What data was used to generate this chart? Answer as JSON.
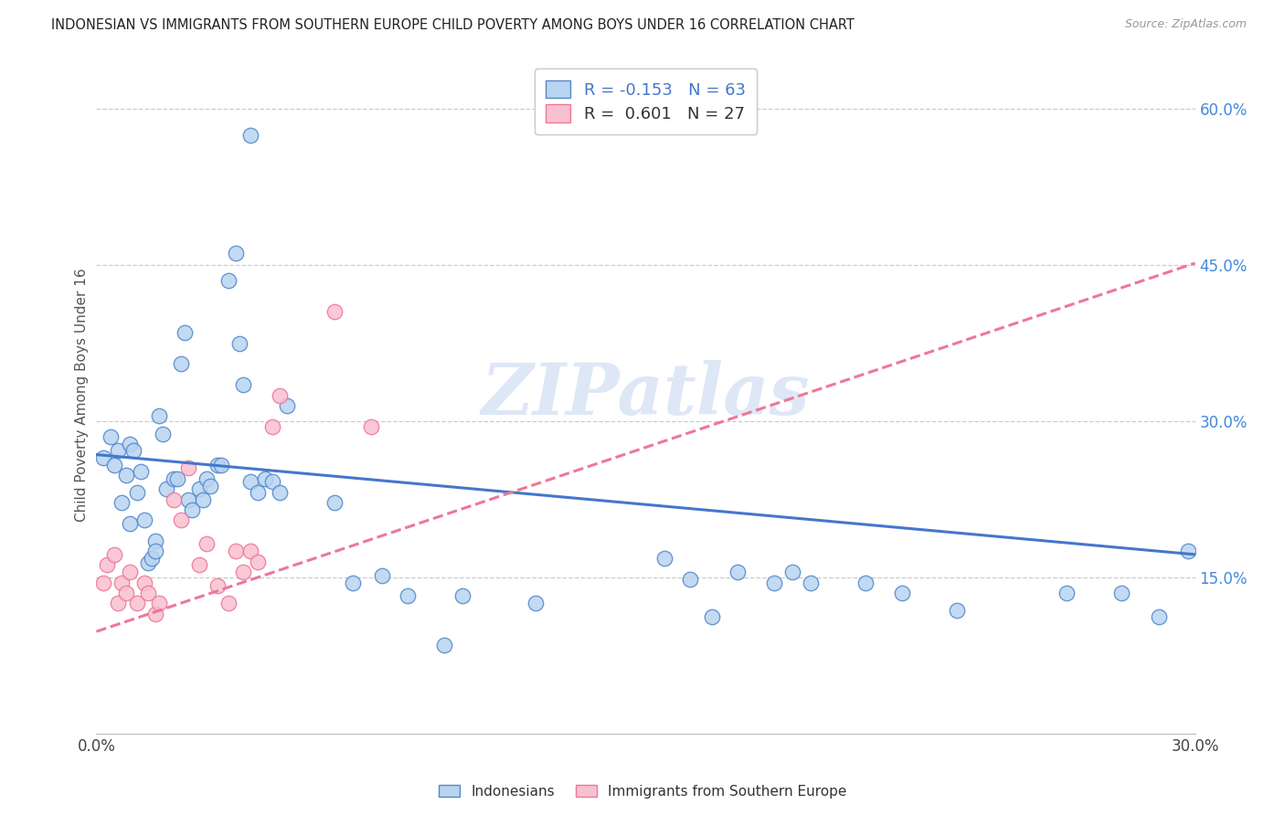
{
  "title": "INDONESIAN VS IMMIGRANTS FROM SOUTHERN EUROPE CHILD POVERTY AMONG BOYS UNDER 16 CORRELATION CHART",
  "source": "Source: ZipAtlas.com",
  "ylabel": "Child Poverty Among Boys Under 16",
  "xlim": [
    0.0,
    0.3
  ],
  "ylim": [
    0.0,
    0.65
  ],
  "xticks": [
    0.0,
    0.05,
    0.1,
    0.15,
    0.2,
    0.25,
    0.3
  ],
  "xtick_labels": [
    "0.0%",
    "",
    "",
    "",
    "",
    "",
    "30.0%"
  ],
  "ytick_labels_right": [
    "15.0%",
    "30.0%",
    "45.0%",
    "60.0%"
  ],
  "ytick_vals_right": [
    0.15,
    0.3,
    0.45,
    0.6
  ],
  "R_blue": -0.153,
  "N_blue": 63,
  "R_pink": 0.601,
  "N_pink": 27,
  "blue_face_color": "#B8D4F0",
  "pink_face_color": "#F8C0D0",
  "blue_edge_color": "#5588CC",
  "pink_edge_color": "#EE7799",
  "blue_line_color": "#4477CC",
  "pink_line_color": "#EE7799",
  "watermark": "ZIPatlas",
  "legend_label_blue": "Indonesians",
  "legend_label_pink": "Immigrants from Southern Europe",
  "blue_points": [
    [
      0.002,
      0.265
    ],
    [
      0.004,
      0.285
    ],
    [
      0.005,
      0.258
    ],
    [
      0.006,
      0.272
    ],
    [
      0.007,
      0.222
    ],
    [
      0.008,
      0.248
    ],
    [
      0.009,
      0.202
    ],
    [
      0.009,
      0.278
    ],
    [
      0.01,
      0.272
    ],
    [
      0.011,
      0.232
    ],
    [
      0.012,
      0.252
    ],
    [
      0.013,
      0.205
    ],
    [
      0.014,
      0.164
    ],
    [
      0.015,
      0.168
    ],
    [
      0.016,
      0.185
    ],
    [
      0.016,
      0.175
    ],
    [
      0.017,
      0.305
    ],
    [
      0.018,
      0.288
    ],
    [
      0.019,
      0.235
    ],
    [
      0.021,
      0.245
    ],
    [
      0.022,
      0.245
    ],
    [
      0.023,
      0.355
    ],
    [
      0.024,
      0.385
    ],
    [
      0.025,
      0.225
    ],
    [
      0.026,
      0.215
    ],
    [
      0.028,
      0.235
    ],
    [
      0.029,
      0.225
    ],
    [
      0.03,
      0.245
    ],
    [
      0.031,
      0.238
    ],
    [
      0.033,
      0.258
    ],
    [
      0.034,
      0.258
    ],
    [
      0.036,
      0.435
    ],
    [
      0.038,
      0.462
    ],
    [
      0.039,
      0.375
    ],
    [
      0.04,
      0.335
    ],
    [
      0.042,
      0.242
    ],
    [
      0.044,
      0.232
    ],
    [
      0.046,
      0.245
    ],
    [
      0.048,
      0.242
    ],
    [
      0.05,
      0.232
    ],
    [
      0.052,
      0.315
    ],
    [
      0.042,
      0.575
    ],
    [
      0.065,
      0.222
    ],
    [
      0.07,
      0.145
    ],
    [
      0.078,
      0.152
    ],
    [
      0.085,
      0.132
    ],
    [
      0.095,
      0.085
    ],
    [
      0.1,
      0.132
    ],
    [
      0.12,
      0.125
    ],
    [
      0.155,
      0.168
    ],
    [
      0.162,
      0.148
    ],
    [
      0.168,
      0.112
    ],
    [
      0.175,
      0.155
    ],
    [
      0.185,
      0.145
    ],
    [
      0.19,
      0.155
    ],
    [
      0.195,
      0.145
    ],
    [
      0.21,
      0.145
    ],
    [
      0.22,
      0.135
    ],
    [
      0.235,
      0.118
    ],
    [
      0.265,
      0.135
    ],
    [
      0.28,
      0.135
    ],
    [
      0.29,
      0.112
    ],
    [
      0.298,
      0.175
    ]
  ],
  "pink_points": [
    [
      0.002,
      0.145
    ],
    [
      0.003,
      0.162
    ],
    [
      0.005,
      0.172
    ],
    [
      0.006,
      0.125
    ],
    [
      0.007,
      0.145
    ],
    [
      0.008,
      0.135
    ],
    [
      0.009,
      0.155
    ],
    [
      0.011,
      0.125
    ],
    [
      0.013,
      0.145
    ],
    [
      0.014,
      0.135
    ],
    [
      0.016,
      0.115
    ],
    [
      0.017,
      0.125
    ],
    [
      0.021,
      0.225
    ],
    [
      0.023,
      0.205
    ],
    [
      0.025,
      0.255
    ],
    [
      0.028,
      0.162
    ],
    [
      0.03,
      0.182
    ],
    [
      0.033,
      0.142
    ],
    [
      0.036,
      0.125
    ],
    [
      0.038,
      0.175
    ],
    [
      0.04,
      0.155
    ],
    [
      0.042,
      0.175
    ],
    [
      0.044,
      0.165
    ],
    [
      0.048,
      0.295
    ],
    [
      0.05,
      0.325
    ],
    [
      0.065,
      0.405
    ],
    [
      0.075,
      0.295
    ]
  ],
  "blue_trend": [
    0.0,
    0.268,
    0.3,
    0.172
  ],
  "pink_trend": [
    0.0,
    0.098,
    0.3,
    0.452
  ]
}
